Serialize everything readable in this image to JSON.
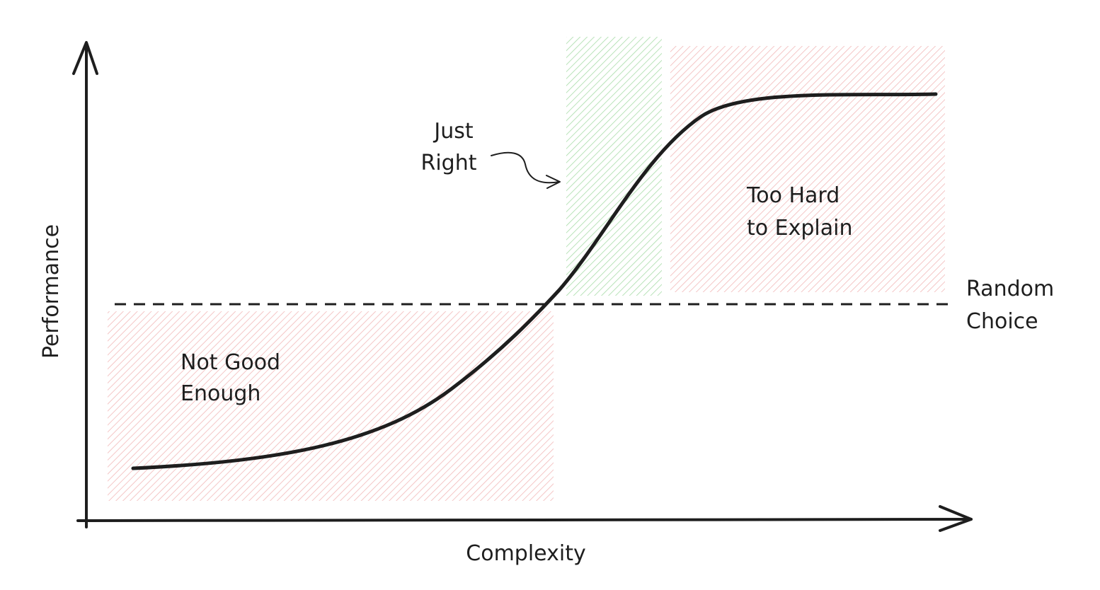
{
  "axes": {
    "x_label": "Complexity",
    "y_label": "Performance"
  },
  "regions": {
    "not_good_enough": [
      "Not Good",
      "Enough"
    ],
    "just_right": [
      "Just",
      "Right"
    ],
    "too_hard": [
      "Too Hard",
      "to Explain"
    ]
  },
  "reference_line": {
    "label": [
      "Random",
      "Choice"
    ]
  }
}
